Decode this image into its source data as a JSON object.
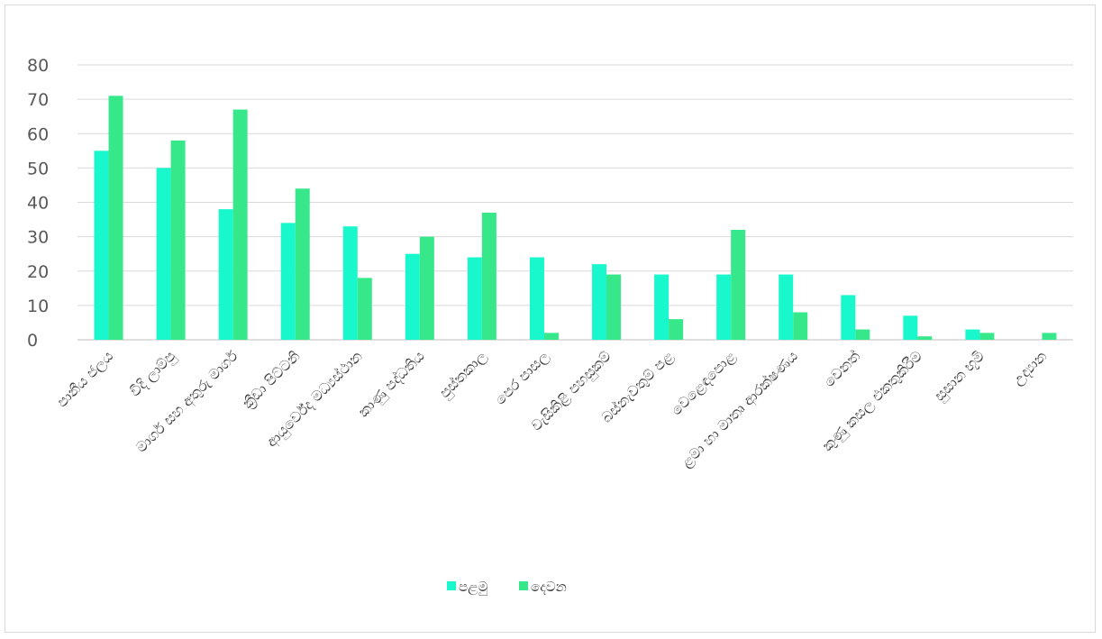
{
  "chart_data": {
    "type": "bar",
    "title": "",
    "xlabel": "",
    "ylabel": "",
    "ylim": [
      0,
      80
    ],
    "yticks": [
      0,
      10,
      20,
      30,
      40,
      50,
      60,
      70,
      80
    ],
    "grid": true,
    "legend_position": "bottom",
    "categories": [
      "පානීය ජලය",
      "වීදි ලාම්පු",
      "මාර්ග සහ අතුරු මාර්ග",
      "ක්‍රීඩා පිට්ටනි",
      "ආයුර්වේද මධ්‍යස්ථාන",
      "කාණු පද්ධතිය",
      "පුස්තකාල",
      "පෙර පාසල",
      "වැසිකිළි පහසුකම්",
      "බස්නැවතුම් පළ",
      "වෙළෙඳපොළ",
      "ළමා හා මාතෘ ආරක්ෂණය",
      "වෙනත්",
      "කුණු කසල එකතුකිරීම",
      "සුසාන භූමි",
      "උද්‍යාන"
    ],
    "series": [
      {
        "name": "පළමු",
        "color": "#19f7cd",
        "values": [
          55,
          50,
          38,
          34,
          33,
          25,
          24,
          24,
          22,
          19,
          19,
          19,
          13,
          7,
          3,
          0
        ]
      },
      {
        "name": "දෙවන",
        "color": "#37e88a",
        "values": [
          71,
          58,
          67,
          44,
          18,
          30,
          37,
          2,
          19,
          6,
          32,
          8,
          3,
          1,
          2,
          2
        ]
      }
    ]
  }
}
